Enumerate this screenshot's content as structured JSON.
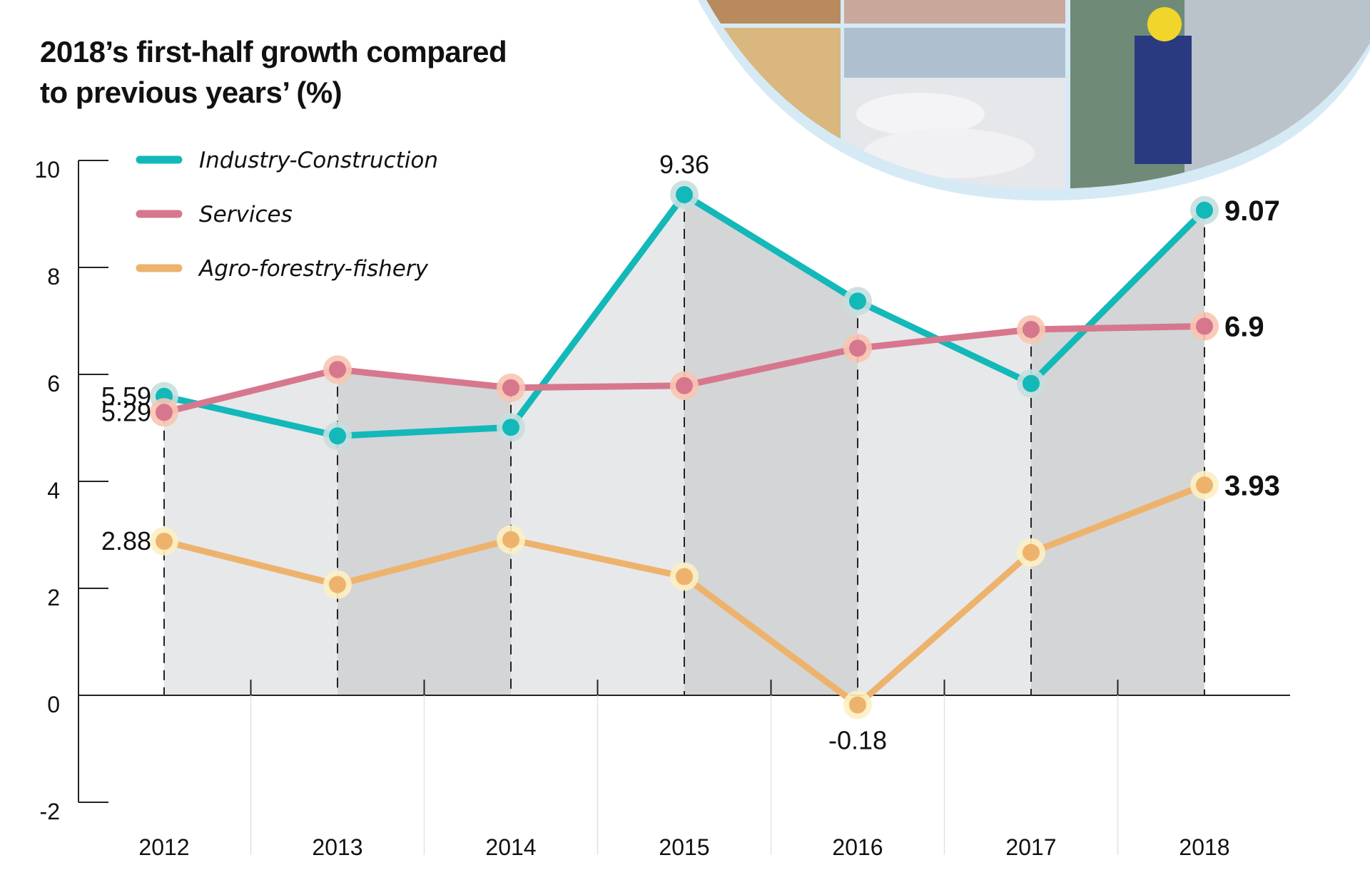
{
  "title_lines": [
    "2018’s first-half growth compared",
    "to previous years’ (%)"
  ],
  "photo_collage": {
    "description": "Photo collage inside a curved light-blue frame: seafood, timber, rice sacks at port, factory worker in hard hat",
    "frame_color": "#d6eaf5"
  },
  "colors": {
    "band_light": "#e7e8ea",
    "band_dark": "#d4d5d7"
  },
  "chart_data": {
    "type": "line",
    "title": "2018’s first-half growth compared to previous years’ (%)",
    "xlabel": "",
    "ylabel": "%",
    "categories": [
      "2012",
      "2013",
      "2014",
      "2015",
      "2016",
      "2017",
      "2018"
    ],
    "ylim": [
      -2,
      10
    ],
    "yticks": [
      10,
      8,
      6,
      4,
      2,
      0,
      -2
    ],
    "grid": false,
    "legend_position": "top-left",
    "series": [
      {
        "name": "Industry-Construction",
        "color": "#13b8b9",
        "halo": "#c6dfdf",
        "values": [
          5.59,
          4.85,
          5.01,
          9.36,
          7.37,
          5.83,
          9.07
        ],
        "labels": {
          "0": "5.59",
          "3": "9.36",
          "6": "9.07"
        }
      },
      {
        "name": "Services",
        "color": "#d7778d",
        "halo": "#f8c5b1",
        "values": [
          5.29,
          6.09,
          5.75,
          5.79,
          6.49,
          6.84,
          6.9
        ],
        "labels": {
          "0": "5.29",
          "6": "6.9"
        }
      },
      {
        "name": "Agro-forestry-fishery",
        "color": "#edb36d",
        "halo": "#fcefc2",
        "values": [
          2.88,
          2.07,
          2.91,
          2.22,
          -0.18,
          2.67,
          3.93
        ],
        "labels": {
          "0": "2.88",
          "4": "-0.18",
          "6": "3.93"
        }
      }
    ]
  }
}
